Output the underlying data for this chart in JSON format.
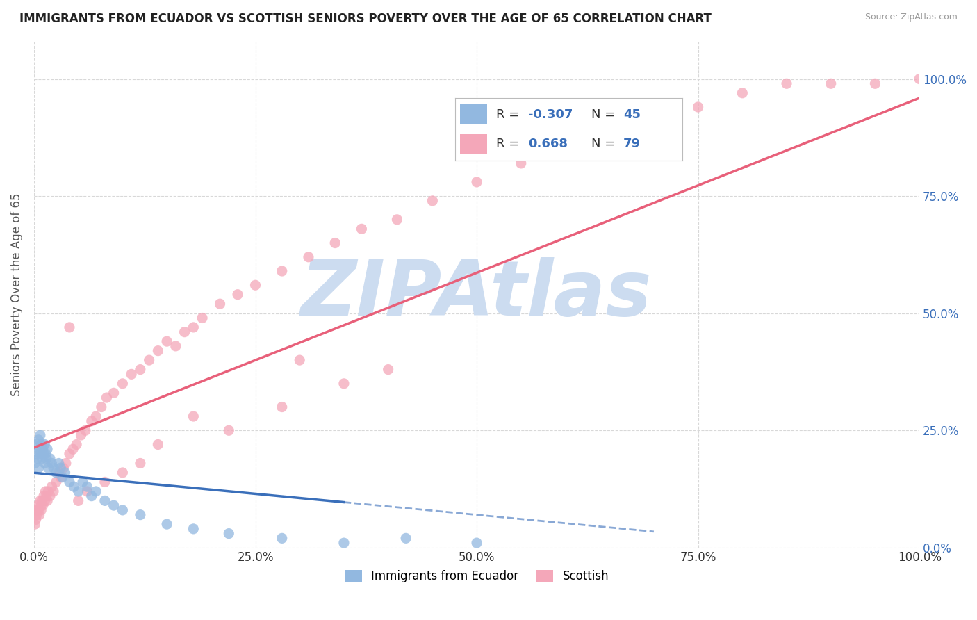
{
  "title": "IMMIGRANTS FROM ECUADOR VS SCOTTISH SENIORS POVERTY OVER THE AGE OF 65 CORRELATION CHART",
  "source": "Source: ZipAtlas.com",
  "ylabel": "Seniors Poverty Over the Age of 65",
  "watermark": "ZIPAtlas",
  "xlim": [
    0.0,
    1.0
  ],
  "ylim": [
    0.0,
    1.08
  ],
  "xticks": [
    0.0,
    0.25,
    0.5,
    0.75,
    1.0
  ],
  "xtick_labels": [
    "0.0%",
    "25.0%",
    "50.0%",
    "75.0%",
    "100.0%"
  ],
  "yticks": [
    0.0,
    0.25,
    0.5,
    0.75,
    1.0
  ],
  "ytick_labels": [
    "0.0%",
    "25.0%",
    "50.0%",
    "75.0%",
    "100.0%"
  ],
  "ecuador_color": "#92b8e0",
  "scottish_color": "#f4a7b9",
  "ecuador_line_color": "#3a6fba",
  "scottish_line_color": "#e8607a",
  "R_ecuador": -0.307,
  "N_ecuador": 45,
  "R_scottish": 0.668,
  "N_scottish": 79,
  "ecuador_scatter_x": [
    0.001,
    0.002,
    0.003,
    0.004,
    0.005,
    0.005,
    0.006,
    0.007,
    0.007,
    0.008,
    0.009,
    0.01,
    0.011,
    0.012,
    0.012,
    0.013,
    0.014,
    0.015,
    0.016,
    0.018,
    0.02,
    0.022,
    0.025,
    0.028,
    0.03,
    0.032,
    0.035,
    0.04,
    0.045,
    0.05,
    0.055,
    0.06,
    0.065,
    0.07,
    0.08,
    0.09,
    0.1,
    0.12,
    0.15,
    0.18,
    0.22,
    0.28,
    0.35,
    0.42,
    0.5
  ],
  "ecuador_scatter_y": [
    0.18,
    0.2,
    0.22,
    0.19,
    0.23,
    0.17,
    0.21,
    0.2,
    0.24,
    0.22,
    0.19,
    0.21,
    0.2,
    0.18,
    0.22,
    0.2,
    0.19,
    0.21,
    0.17,
    0.19,
    0.18,
    0.17,
    0.16,
    0.18,
    0.17,
    0.15,
    0.16,
    0.14,
    0.13,
    0.12,
    0.14,
    0.13,
    0.11,
    0.12,
    0.1,
    0.09,
    0.08,
    0.07,
    0.05,
    0.04,
    0.03,
    0.02,
    0.01,
    0.02,
    0.01
  ],
  "scottish_scatter_x": [
    0.001,
    0.002,
    0.003,
    0.003,
    0.004,
    0.005,
    0.006,
    0.007,
    0.008,
    0.008,
    0.009,
    0.01,
    0.011,
    0.012,
    0.013,
    0.014,
    0.015,
    0.016,
    0.018,
    0.02,
    0.022,
    0.025,
    0.028,
    0.03,
    0.033,
    0.036,
    0.04,
    0.044,
    0.048,
    0.053,
    0.058,
    0.065,
    0.07,
    0.076,
    0.082,
    0.09,
    0.1,
    0.11,
    0.12,
    0.13,
    0.14,
    0.15,
    0.16,
    0.17,
    0.18,
    0.19,
    0.21,
    0.23,
    0.25,
    0.28,
    0.31,
    0.34,
    0.37,
    0.41,
    0.45,
    0.5,
    0.55,
    0.6,
    0.65,
    0.7,
    0.75,
    0.8,
    0.85,
    0.9,
    0.95,
    1.0,
    0.3,
    0.35,
    0.4,
    0.28,
    0.22,
    0.18,
    0.14,
    0.12,
    0.1,
    0.08,
    0.06,
    0.05,
    0.04
  ],
  "scottish_scatter_y": [
    0.05,
    0.06,
    0.08,
    0.07,
    0.09,
    0.08,
    0.07,
    0.1,
    0.09,
    0.08,
    0.1,
    0.09,
    0.11,
    0.1,
    0.12,
    0.11,
    0.1,
    0.12,
    0.11,
    0.13,
    0.12,
    0.14,
    0.16,
    0.15,
    0.17,
    0.18,
    0.2,
    0.21,
    0.22,
    0.24,
    0.25,
    0.27,
    0.28,
    0.3,
    0.32,
    0.33,
    0.35,
    0.37,
    0.38,
    0.4,
    0.42,
    0.44,
    0.43,
    0.46,
    0.47,
    0.49,
    0.52,
    0.54,
    0.56,
    0.59,
    0.62,
    0.65,
    0.68,
    0.7,
    0.74,
    0.78,
    0.82,
    0.86,
    0.88,
    0.91,
    0.94,
    0.97,
    0.99,
    0.99,
    0.99,
    1.0,
    0.4,
    0.35,
    0.38,
    0.3,
    0.25,
    0.28,
    0.22,
    0.18,
    0.16,
    0.14,
    0.12,
    0.1,
    0.47
  ],
  "background_color": "#ffffff",
  "grid_color": "#d8d8d8",
  "title_color": "#222222",
  "axis_label_color": "#555555",
  "tick_color_blue": "#3a6fba",
  "watermark_color": "#ccdcf0",
  "legend_label_color": "#3a6fba"
}
